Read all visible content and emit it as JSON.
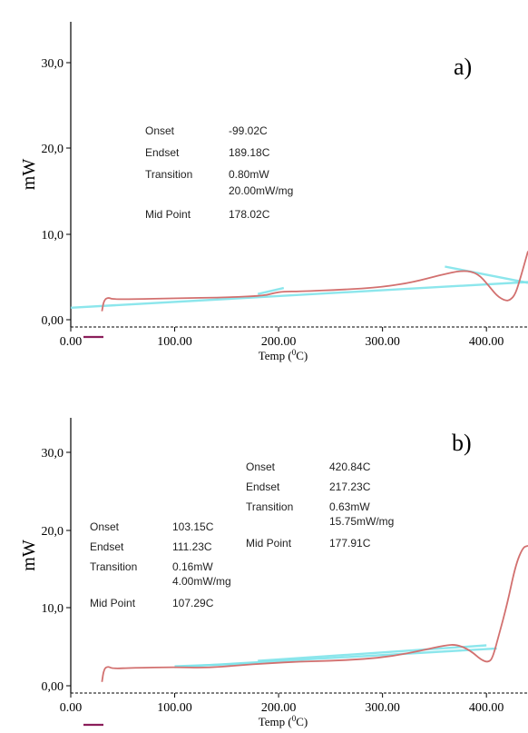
{
  "colors": {
    "curve": "#d2706f",
    "baseline": "#7fe3ea",
    "axis": "#000000",
    "marker": "#8b1e5a"
  },
  "chart_data": [
    {
      "type": "line",
      "panel_label": "a)",
      "xlabel": "Temp (",
      "xlabel_sup": "0",
      "xlabel_tail": "C)",
      "ylabel": "mW",
      "xlim": [
        0,
        440
      ],
      "ylim": [
        0,
        35
      ],
      "x_ticks": [
        "0.00",
        "100.00",
        "200.00",
        "300.00",
        "400.00"
      ],
      "y_ticks": [
        "0,00",
        "10,0",
        "20,0",
        "30,0"
      ],
      "series": [
        {
          "x": [
            30,
            32,
            36,
            40,
            60,
            100,
            150,
            185,
            195,
            205,
            220,
            260,
            300,
            330,
            355,
            378,
            392,
            402,
            410,
            418,
            423,
            428,
            433,
            440
          ],
          "y": [
            1.0,
            2.3,
            2.6,
            2.4,
            2.4,
            2.5,
            2.6,
            2.8,
            3.1,
            3.3,
            3.3,
            3.5,
            3.8,
            4.4,
            5.2,
            5.8,
            5.4,
            4.0,
            2.8,
            2.2,
            2.3,
            3.0,
            5.0,
            8.0
          ]
        }
      ],
      "baselines": [
        {
          "x": [
            0,
            440
          ],
          "y": [
            1.4,
            4.4
          ]
        },
        {
          "x": [
            180,
            205
          ],
          "y": [
            3.0,
            3.7
          ]
        },
        {
          "x": [
            360,
            440
          ],
          "y": [
            6.2,
            4.3
          ]
        }
      ],
      "annotations": [
        {
          "label": "Onset",
          "value": "-99.02C"
        },
        {
          "label": "Endset",
          "value": "189.18C"
        },
        {
          "label": "Transition",
          "value": "0.80mW"
        },
        {
          "label": "",
          "value": "20.00mW/mg"
        },
        {
          "label": "Mid Point",
          "value": "178.02C"
        }
      ]
    },
    {
      "type": "line",
      "panel_label": "b)",
      "xlabel": "Temp (",
      "xlabel_sup": "0",
      "xlabel_tail": "C)",
      "ylabel": "mW",
      "xlim": [
        0,
        440
      ],
      "ylim": [
        0,
        35
      ],
      "x_ticks": [
        "0.00",
        "100.00",
        "200.00",
        "300.00",
        "400.00"
      ],
      "y_ticks": [
        "0,00",
        "10,0",
        "20,0",
        "30,0"
      ],
      "series": [
        {
          "x": [
            30,
            32,
            36,
            40,
            60,
            100,
            130,
            160,
            190,
            220,
            250,
            280,
            310,
            340,
            360,
            372,
            385,
            395,
            402,
            406,
            412,
            420,
            428,
            435,
            440
          ],
          "y": [
            0.5,
            2.2,
            2.5,
            2.2,
            2.3,
            2.4,
            2.3,
            2.6,
            2.9,
            3.1,
            3.2,
            3.4,
            3.8,
            4.6,
            5.2,
            5.3,
            4.5,
            3.3,
            3.0,
            3.6,
            6.5,
            10.5,
            15.5,
            17.8,
            18.0
          ]
        }
      ],
      "baselines": [
        {
          "x": [
            100,
            410
          ],
          "y": [
            2.4,
            4.8
          ]
        },
        {
          "x": [
            180,
            400
          ],
          "y": [
            3.2,
            5.2
          ]
        },
        {
          "x": [
            100,
            180
          ],
          "y": [
            2.5,
            2.9
          ]
        }
      ],
      "annotations_left": [
        {
          "label": "Onset",
          "value": "103.15C"
        },
        {
          "label": "Endset",
          "value": "111.23C"
        },
        {
          "label": "Transition",
          "value": "0.16mW"
        },
        {
          "label": "",
          "value": "4.00mW/mg"
        },
        {
          "label": "Mid Point",
          "value": "107.29C"
        }
      ],
      "annotations_right": [
        {
          "label": "Onset",
          "value": "420.84C"
        },
        {
          "label": "Endset",
          "value": "217.23C"
        },
        {
          "label": "Transition",
          "value": "0.63mW"
        },
        {
          "label": "",
          "value": "15.75mW/mg"
        },
        {
          "label": "Mid Point",
          "value": "177.91C"
        }
      ]
    }
  ]
}
